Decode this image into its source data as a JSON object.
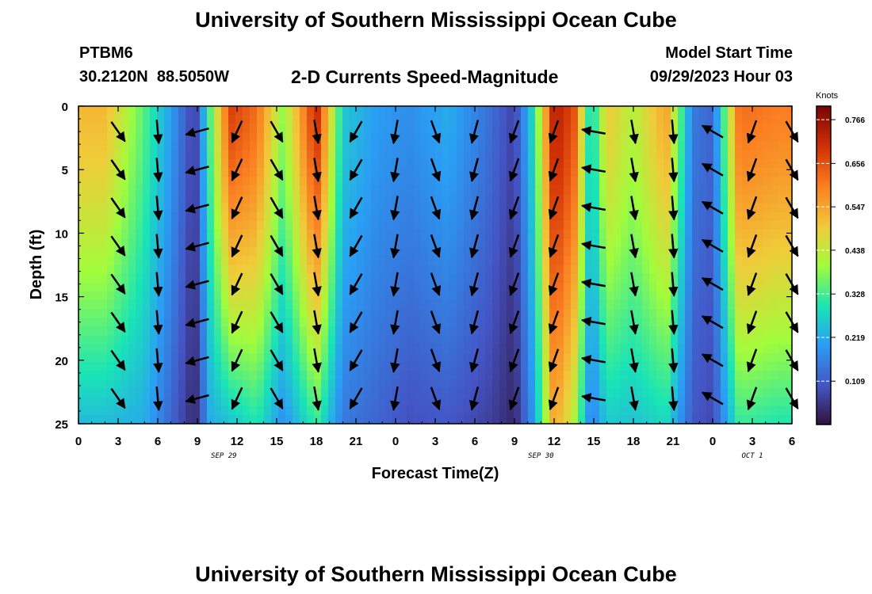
{
  "title": "University of Southern Mississippi Ocean Cube",
  "footer_title": "University of Southern Mississippi Ocean Cube",
  "station": {
    "id": "PTBM6",
    "coords": "30.2120N  88.5050W"
  },
  "model_start": {
    "label": "Model Start Time",
    "value": "09/29/2023 Hour 03"
  },
  "chart_data": {
    "type": "heatmap",
    "title": "2-D Currents Speed-Magnitude",
    "xlabel": "Forecast Time(Z)",
    "ylabel": "Depth (ft)",
    "x_hours_range": [
      0,
      54
    ],
    "x_tick_labels": [
      "0",
      "3",
      "6",
      "9",
      "12",
      "15",
      "18",
      "21",
      "0",
      "3",
      "6",
      "9",
      "12",
      "15",
      "18",
      "21",
      "0",
      "3",
      "6"
    ],
    "date_labels": [
      {
        "text": "SEP 29",
        "hour": 11
      },
      {
        "text": "SEP 30",
        "hour": 35
      },
      {
        "text": "OCT 1",
        "hour": 51
      }
    ],
    "y_ticks": [
      0,
      5,
      10,
      15,
      20,
      25
    ],
    "ylim": [
      0,
      25
    ],
    "colorbar": {
      "unit": "Knots",
      "ticks": [
        0.766,
        0.656,
        0.547,
        0.438,
        0.328,
        0.219,
        0.109
      ],
      "range": [
        0.0,
        0.8
      ]
    },
    "time_columns": [
      {
        "hour": 2,
        "surface": 0.52,
        "bottom": 0.24,
        "dir": 150
      },
      {
        "hour": 5,
        "surface": 0.34,
        "bottom": 0.22,
        "dir": 170
      },
      {
        "hour": 7,
        "surface": 0.2,
        "bottom": 0.12,
        "dir": 250
      },
      {
        "hour": 8.8,
        "surface": 0.06,
        "bottom": 0.03,
        "dir": 245
      },
      {
        "hour": 10,
        "surface": 0.35,
        "bottom": 0.22,
        "dir": 210
      },
      {
        "hour": 11.5,
        "surface": 0.68,
        "bottom": 0.25,
        "dir": 200
      },
      {
        "hour": 13.5,
        "surface": 0.62,
        "bottom": 0.3,
        "dir": 150
      },
      {
        "hour": 15.5,
        "surface": 0.38,
        "bottom": 0.18,
        "dir": 150
      },
      {
        "hour": 18,
        "surface": 0.72,
        "bottom": 0.32,
        "dir": 170
      },
      {
        "hour": 20,
        "surface": 0.26,
        "bottom": 0.15,
        "dir": 200
      },
      {
        "hour": 22.5,
        "surface": 0.2,
        "bottom": 0.12,
        "dir": 230
      },
      {
        "hour": 25,
        "surface": 0.18,
        "bottom": 0.09,
        "dir": 180
      },
      {
        "hour": 28,
        "surface": 0.22,
        "bottom": 0.1,
        "dir": 150
      },
      {
        "hour": 31,
        "surface": 0.14,
        "bottom": 0.07,
        "dir": 165
      },
      {
        "hour": 33,
        "surface": 0.07,
        "bottom": 0.03,
        "dir": 190
      },
      {
        "hour": 34.5,
        "surface": 0.3,
        "bottom": 0.2,
        "dir": 200
      },
      {
        "hour": 36,
        "surface": 0.74,
        "bottom": 0.55,
        "dir": 190
      },
      {
        "hour": 37.5,
        "surface": 0.66,
        "bottom": 0.42,
        "dir": 190
      },
      {
        "hour": 38.8,
        "surface": 0.25,
        "bottom": 0.15,
        "dir": 275
      },
      {
        "hour": 40,
        "surface": 0.5,
        "bottom": 0.26,
        "dir": 145
      },
      {
        "hour": 42,
        "surface": 0.42,
        "bottom": 0.25,
        "dir": 180
      },
      {
        "hour": 44.5,
        "surface": 0.55,
        "bottom": 0.28,
        "dir": 170
      },
      {
        "hour": 46.5,
        "surface": 0.15,
        "bottom": 0.1,
        "dir": 290
      },
      {
        "hour": 48,
        "surface": 0.12,
        "bottom": 0.08,
        "dir": 260
      },
      {
        "hour": 50,
        "surface": 0.62,
        "bottom": 0.32,
        "dir": 150
      },
      {
        "hour": 53,
        "surface": 0.6,
        "bottom": 0.3,
        "dir": 150
      }
    ],
    "vectors_columns": [
      {
        "hour": 3,
        "dir": 145
      },
      {
        "hour": 6,
        "dir": 175
      },
      {
        "hour": 9,
        "dir": 255
      },
      {
        "hour": 12,
        "dir": 205
      },
      {
        "hour": 15,
        "dir": 150
      },
      {
        "hour": 18,
        "dir": 170
      },
      {
        "hour": 21,
        "dir": 210
      },
      {
        "hour": 24,
        "dir": 190
      },
      {
        "hour": 27,
        "dir": 160
      },
      {
        "hour": 30,
        "dir": 195
      },
      {
        "hour": 33,
        "dir": 200
      },
      {
        "hour": 36,
        "dir": 200
      },
      {
        "hour": 39,
        "dir": 280
      },
      {
        "hour": 42,
        "dir": 170
      },
      {
        "hour": 45,
        "dir": 175
      },
      {
        "hour": 48,
        "dir": 300
      },
      {
        "hour": 51,
        "dir": 200
      },
      {
        "hour": 54,
        "dir": 150
      }
    ],
    "vector_depths": [
      2,
      5,
      8,
      11,
      14,
      17,
      20,
      23
    ]
  }
}
